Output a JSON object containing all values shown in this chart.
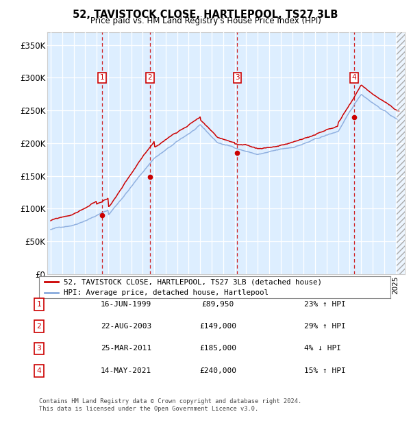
{
  "title": "52, TAVISTOCK CLOSE, HARTLEPOOL, TS27 3LB",
  "subtitle": "Price paid vs. HM Land Registry's House Price Index (HPI)",
  "ylabel_ticks": [
    "£0",
    "£50K",
    "£100K",
    "£150K",
    "£200K",
    "£250K",
    "£300K",
    "£350K"
  ],
  "ytick_values": [
    0,
    50000,
    100000,
    150000,
    200000,
    250000,
    300000,
    350000
  ],
  "ylim": [
    0,
    370000
  ],
  "xlim_start": 1994.7,
  "xlim_end": 2025.8,
  "transaction_color": "#cc0000",
  "hpi_color": "#88aadd",
  "bg_color": "#ddeeff",
  "transactions": [
    {
      "date": 1999.46,
      "price": 89950,
      "label": "1"
    },
    {
      "date": 2003.64,
      "price": 149000,
      "label": "2"
    },
    {
      "date": 2011.23,
      "price": 185000,
      "label": "3"
    },
    {
      "date": 2021.37,
      "price": 240000,
      "label": "4"
    }
  ],
  "legend_line1": "52, TAVISTOCK CLOSE, HARTLEPOOL, TS27 3LB (detached house)",
  "legend_line2": "HPI: Average price, detached house, Hartlepool",
  "table_rows": [
    {
      "num": "1",
      "date": "16-JUN-1999",
      "price": "£89,950",
      "hpi": "23% ↑ HPI"
    },
    {
      "num": "2",
      "date": "22-AUG-2003",
      "price": "£149,000",
      "hpi": "29% ↑ HPI"
    },
    {
      "num": "3",
      "date": "25-MAR-2011",
      "price": "£185,000",
      "hpi": "4% ↓ HPI"
    },
    {
      "num": "4",
      "date": "14-MAY-2021",
      "price": "£240,000",
      "hpi": "15% ↑ HPI"
    }
  ],
  "footer1": "Contains HM Land Registry data © Crown copyright and database right 2024.",
  "footer2": "This data is licensed under the Open Government Licence v3.0.",
  "hpi_seed": 42,
  "prop_seed": 99
}
